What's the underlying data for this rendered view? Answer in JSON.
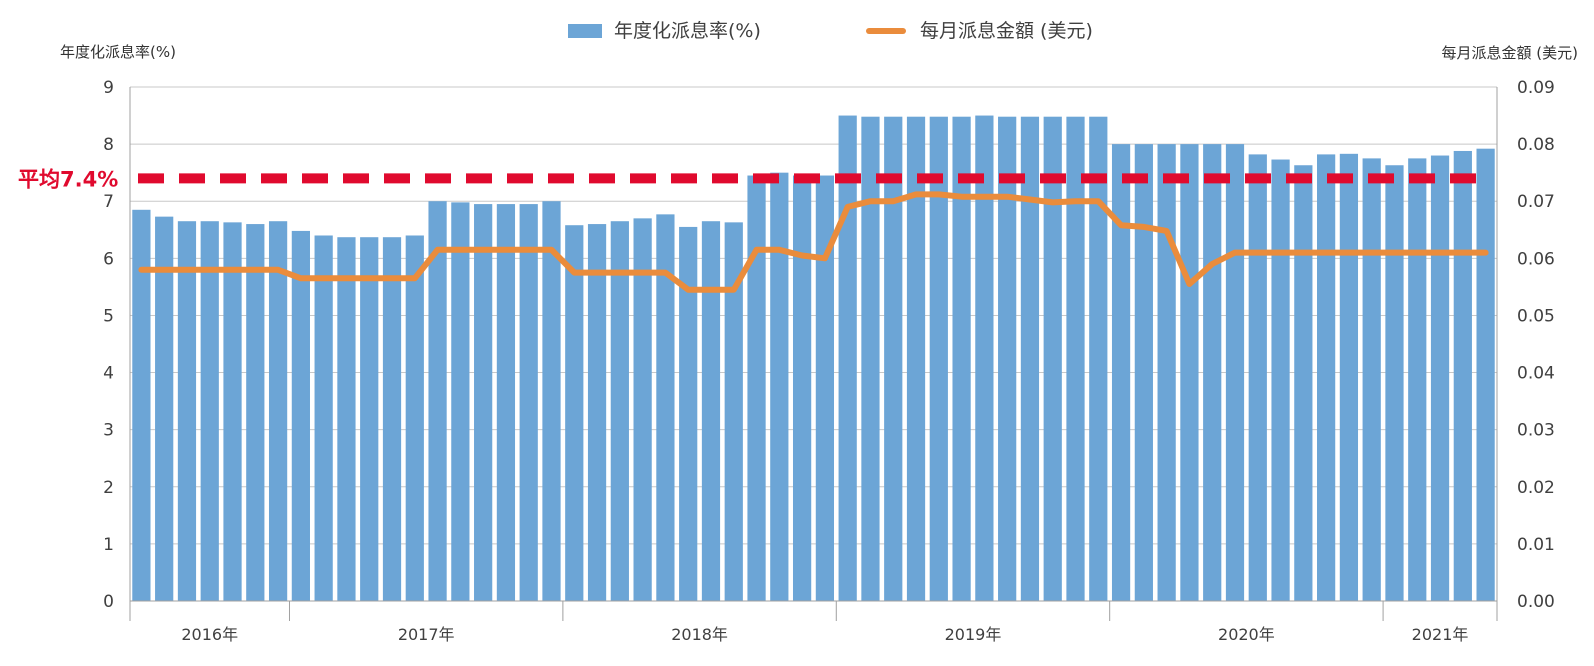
{
  "chart_data": {
    "type": "bar",
    "legend": {
      "position": "top-center",
      "bar_label": "年度化派息率(%)",
      "line_label": "每月派息金額 (美元)"
    },
    "left_axis": {
      "title": "年度化派息率(%)",
      "ylim": [
        0,
        9
      ],
      "ticks": [
        "0",
        "1",
        "2",
        "3",
        "4",
        "5",
        "6",
        "7",
        "8",
        "9"
      ]
    },
    "right_axis": {
      "title": "每月派息金額 (美元)",
      "ylim": [
        0,
        0.09
      ],
      "ticks": [
        "0.00",
        "0.01",
        "0.02",
        "0.03",
        "0.04",
        "0.05",
        "0.06",
        "0.07",
        "0.08",
        "0.09"
      ]
    },
    "grid": true,
    "years": [
      {
        "label": "2016年",
        "count": 7
      },
      {
        "label": "2017年",
        "count": 12
      },
      {
        "label": "2018年",
        "count": 12
      },
      {
        "label": "2019年",
        "count": 12
      },
      {
        "label": "2020年",
        "count": 12
      },
      {
        "label": "2021年",
        "count": 5
      }
    ],
    "series": [
      {
        "name": "年度化派息率(%)",
        "type": "bar",
        "color": "#6CA5D6",
        "values": [
          6.85,
          6.73,
          6.65,
          6.65,
          6.63,
          6.6,
          6.65,
          6.48,
          6.4,
          6.37,
          6.37,
          6.37,
          6.4,
          7.0,
          6.98,
          6.95,
          6.95,
          6.95,
          7.0,
          6.58,
          6.6,
          6.65,
          6.7,
          6.77,
          6.55,
          6.65,
          6.63,
          7.45,
          7.5,
          7.45,
          7.45,
          8.5,
          8.48,
          8.48,
          8.48,
          8.48,
          8.48,
          8.5,
          8.48,
          8.48,
          8.48,
          8.48,
          8.48,
          8.0,
          8.0,
          8.0,
          8.0,
          8.0,
          8.0,
          7.82,
          7.73,
          7.63,
          7.82,
          7.83,
          7.75,
          7.63,
          7.75,
          7.8,
          7.88,
          7.92
        ]
      },
      {
        "name": "每月派息金額 (美元)",
        "type": "line",
        "color": "#EA8C3C",
        "values": [
          0.058,
          0.058,
          0.058,
          0.058,
          0.058,
          0.058,
          0.058,
          0.0565,
          0.0565,
          0.0565,
          0.0565,
          0.0565,
          0.0565,
          0.0615,
          0.0615,
          0.0615,
          0.0615,
          0.0615,
          0.0615,
          0.0575,
          0.0575,
          0.0575,
          0.0575,
          0.0575,
          0.0545,
          0.0545,
          0.0545,
          0.0615,
          0.0615,
          0.0605,
          0.06,
          0.069,
          0.07,
          0.07,
          0.0712,
          0.0712,
          0.0708,
          0.0708,
          0.0708,
          0.0703,
          0.0698,
          0.07,
          0.07,
          0.0658,
          0.0655,
          0.0648,
          0.0555,
          0.059,
          0.061,
          0.061,
          0.061,
          0.061,
          0.061,
          0.061,
          0.061,
          0.061,
          0.061,
          0.061,
          0.061,
          0.061
        ]
      }
    ],
    "average": {
      "label": "平均7.4%",
      "value": 7.4,
      "color": "#E00A2E"
    }
  }
}
